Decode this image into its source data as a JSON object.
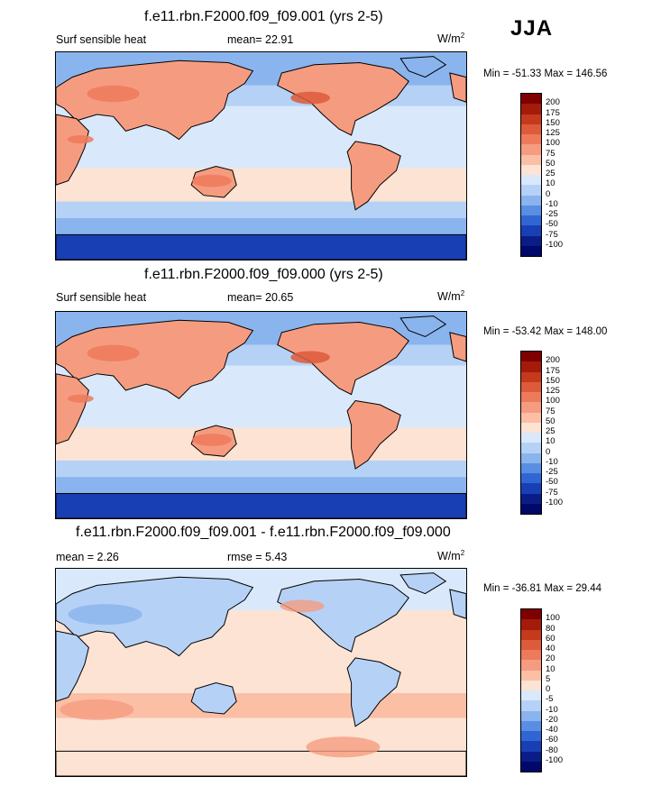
{
  "season": "JJA",
  "panels": [
    {
      "title": "f.e11.rbn.F2000.f09_f09.001 (yrs 2-5)",
      "variable": "Surf sensible heat",
      "stat1": "mean=  22.91",
      "stat2": "",
      "units": "W/m",
      "units_sup": "2",
      "minmax": "Min = -51.33 Max = 146.56",
      "colorbar_labels": [
        "200",
        "175",
        "150",
        "125",
        "100",
        "75",
        "50",
        "25",
        "10",
        "0",
        "-10",
        "-25",
        "-50",
        "-75",
        "-100"
      ],
      "kind": "absolute"
    },
    {
      "title": "f.e11.rbn.F2000.f09_f09.000 (yrs 2-5)",
      "variable": "Surf sensible heat",
      "stat1": "mean=  20.65",
      "stat2": "",
      "units": "W/m",
      "units_sup": "2",
      "minmax": "Min = -53.42 Max = 148.00",
      "colorbar_labels": [
        "200",
        "175",
        "150",
        "125",
        "100",
        "75",
        "50",
        "25",
        "10",
        "0",
        "-10",
        "-25",
        "-50",
        "-75",
        "-100"
      ],
      "kind": "absolute"
    },
    {
      "title": "f.e11.rbn.F2000.f09_f09.001 - f.e11.rbn.F2000.f09_f09.000",
      "variable": "mean =  2.26",
      "stat1": "rmse =  5.43",
      "stat2": "",
      "units": "W/m",
      "units_sup": "2",
      "minmax": "Min = -36.81 Max =  29.44",
      "colorbar_labels": [
        "100",
        "80",
        "60",
        "40",
        "20",
        "10",
        "5",
        "0",
        "-5",
        "-10",
        "-20",
        "-40",
        "-60",
        "-80",
        "-100"
      ],
      "kind": "difference"
    }
  ],
  "colors": {
    "ramp": [
      "#7f0000",
      "#a41b0b",
      "#c53a1d",
      "#dd5a3a",
      "#ee7a5c",
      "#f59c80",
      "#fbbfa6",
      "#fde3d3",
      "#d9e9fb",
      "#b5d2f6",
      "#8ab4ee",
      "#5a8ee2",
      "#3066d4",
      "#1840b4",
      "#0a1d86",
      "#00086a"
    ]
  },
  "chart_data": [
    {
      "type": "heatmap",
      "title": "f.e11.rbn.F2000.f09_f09.001 (yrs 2-5)",
      "variable": "Surf sensible heat",
      "units": "W/m2",
      "mean": 22.91,
      "min": -51.33,
      "max": 146.56,
      "levels": [
        -100,
        -75,
        -50,
        -25,
        -10,
        0,
        10,
        25,
        50,
        75,
        100,
        125,
        150,
        175,
        200
      ]
    },
    {
      "type": "heatmap",
      "title": "f.e11.rbn.F2000.f09_f09.000 (yrs 2-5)",
      "variable": "Surf sensible heat",
      "units": "W/m2",
      "mean": 20.65,
      "min": -53.42,
      "max": 148.0,
      "levels": [
        -100,
        -75,
        -50,
        -25,
        -10,
        0,
        10,
        25,
        50,
        75,
        100,
        125,
        150,
        175,
        200
      ]
    },
    {
      "type": "heatmap",
      "title": "f.e11.rbn.F2000.f09_f09.001 - f.e11.rbn.F2000.f09_f09.000",
      "units": "W/m2",
      "mean": 2.26,
      "rmse": 5.43,
      "min": -36.81,
      "max": 29.44,
      "levels": [
        -100,
        -80,
        -60,
        -40,
        -20,
        -10,
        -5,
        0,
        5,
        10,
        20,
        40,
        60,
        80,
        100
      ]
    }
  ]
}
